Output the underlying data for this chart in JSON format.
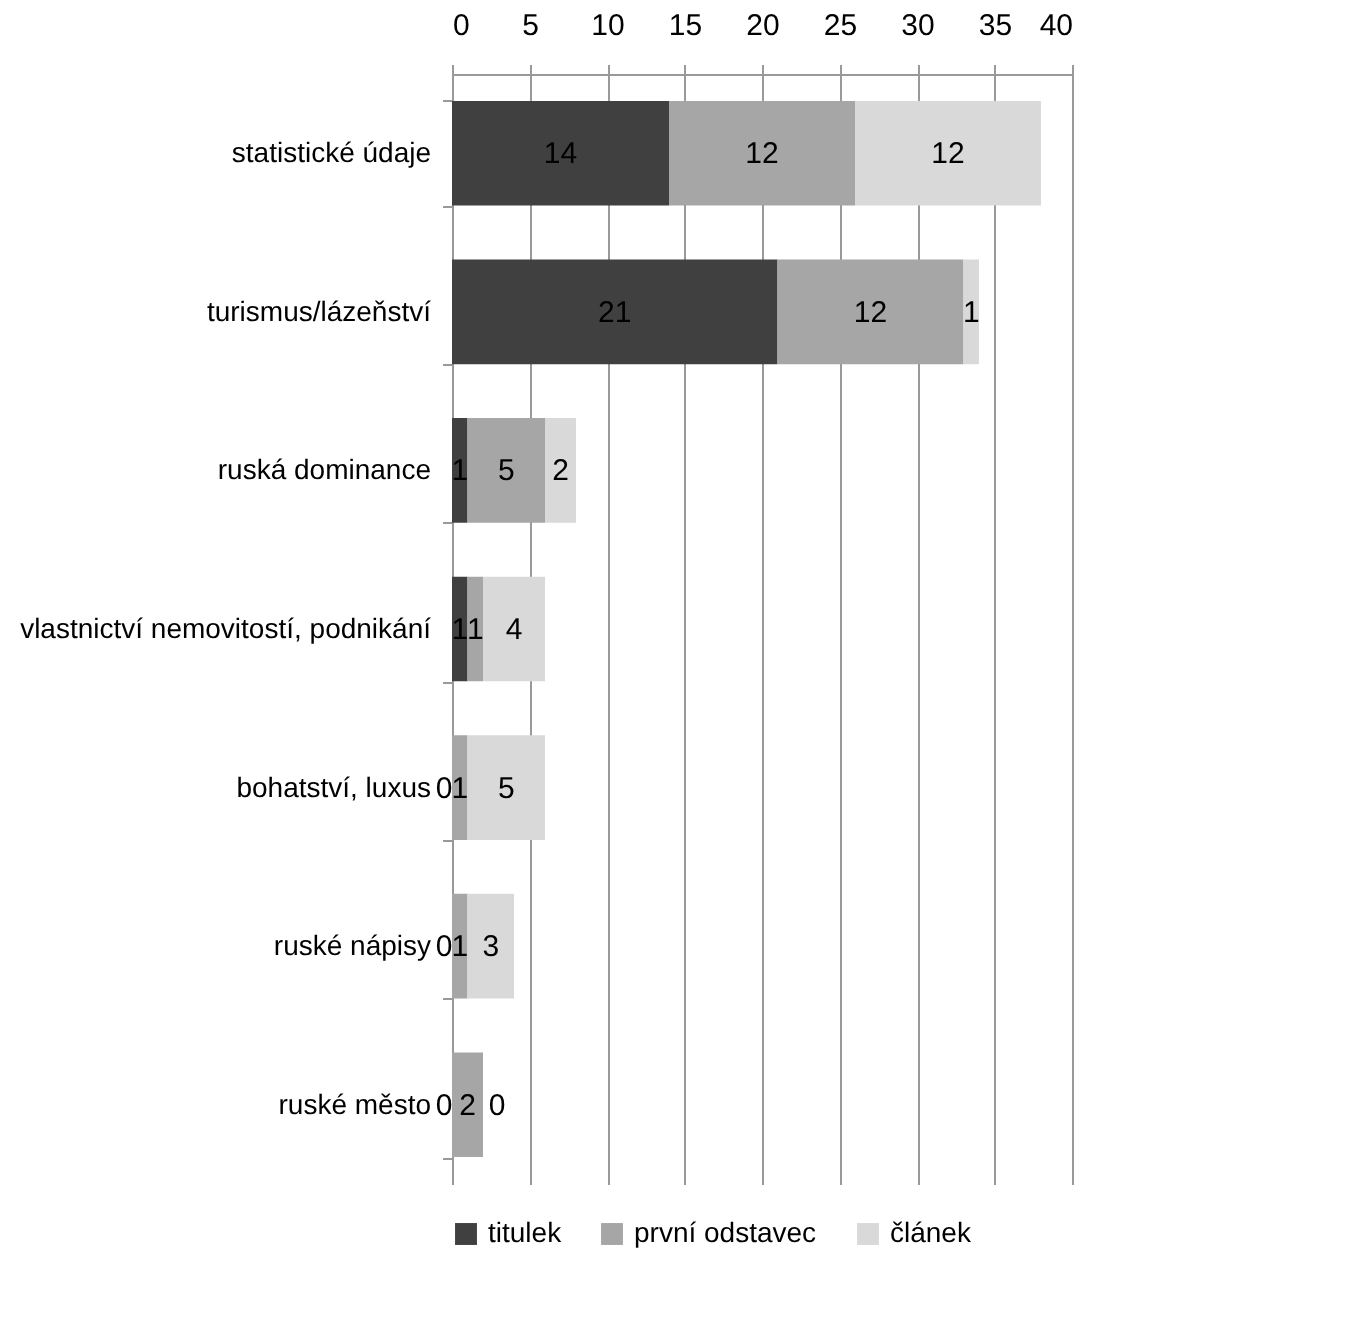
{
  "chart_data": {
    "type": "bar",
    "orientation": "horizontal",
    "stacked": true,
    "data_labels": true,
    "grid": "x",
    "legend": "bottom",
    "categories": [
      "statistické  údaje",
      "turismus/lázeňství",
      "ruská dominance",
      "vlastnictví nemovitostí,  podnikání",
      "bohatství,  luxus",
      "ruské nápisy",
      "ruské město"
    ],
    "series": [
      {
        "name": "titulek",
        "color": "#404040",
        "values": [
          14,
          21,
          1,
          1,
          0,
          0,
          0
        ]
      },
      {
        "name": "první odstavec",
        "color": "#a6a6a6",
        "values": [
          12,
          12,
          5,
          1,
          1,
          1,
          2
        ]
      },
      {
        "name": "článek",
        "color": "#d9d9d9",
        "values": [
          12,
          1,
          2,
          4,
          5,
          3,
          0
        ]
      }
    ],
    "xlim": [
      0,
      40
    ],
    "xticks": [
      0,
      5,
      10,
      15,
      20,
      25,
      30,
      35,
      40
    ]
  }
}
